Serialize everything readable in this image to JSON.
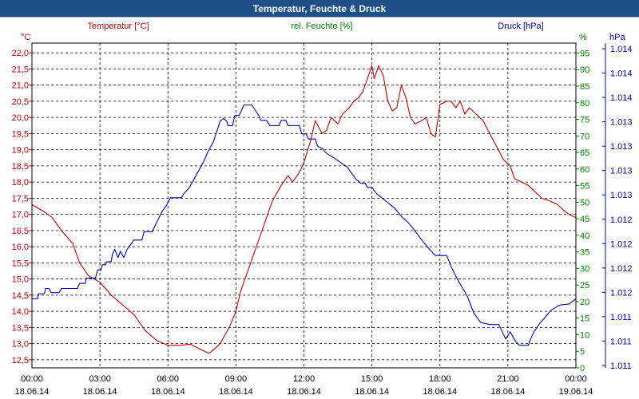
{
  "window": {
    "title": "Temperatur, Feuchte & Druck"
  },
  "colors": {
    "title_bar": "#1f4f88",
    "temperature": "#c00000",
    "humidity": "#008000",
    "pressure": "#0000b4",
    "grid": "#000000",
    "x_labels": "#000000"
  },
  "chart_data": {
    "type": "line",
    "title": "Temperatur, Feuchte & Druck",
    "x_tick_labels": [
      {
        "time": "00:00",
        "date": "18.06.14"
      },
      {
        "time": "03:00",
        "date": "18.06.14"
      },
      {
        "time": "06:00",
        "date": "18.06.14"
      },
      {
        "time": "09:00",
        "date": "18.06.14"
      },
      {
        "time": "12:00",
        "date": "18.06.14"
      },
      {
        "time": "15:00",
        "date": "18.06.14"
      },
      {
        "time": "18:00",
        "date": "18.06.14"
      },
      {
        "time": "21:00",
        "date": "18.06.14"
      },
      {
        "time": "00:00",
        "date": "19.06.14"
      }
    ],
    "x_range_hours": [
      0,
      24
    ],
    "grid": true,
    "axes": {
      "temperature": {
        "unit": "°C",
        "label": "Temperatur [°C]",
        "range": [
          12.25,
          22.3
        ],
        "ticks": [
          "12,5",
          "13,0",
          "13,5",
          "14,0",
          "14,5",
          "15,0",
          "15,5",
          "16,0",
          "16,5",
          "17,0",
          "17,5",
          "18,0",
          "18,5",
          "19,0",
          "19,5",
          "20,0",
          "20,5",
          "21,0",
          "21,5",
          "22,0"
        ]
      },
      "humidity": {
        "unit": "%",
        "label": "rel. Feuchte [%]",
        "range": [
          0,
          98
        ],
        "ticks": [
          "0",
          "5",
          "10",
          "15",
          "20",
          "25",
          "30",
          "35",
          "40",
          "45",
          "50",
          "55",
          "60",
          "65",
          "70",
          "75",
          "80",
          "85",
          "90",
          "95"
        ]
      },
      "pressure": {
        "unit": "hPa",
        "label": "Druck [hPa]",
        "range": [
          1010.95,
          1014.1
        ],
        "ticks": [
          "1.011",
          "1.011",
          "1.011",
          "1.012",
          "1.012",
          "1.012",
          "1.012",
          "1.013",
          "1.013",
          "1.013",
          "1.013",
          "1.014",
          "1.014",
          "1.014"
        ]
      }
    },
    "series": [
      {
        "name": "Temperatur",
        "axis": "temperature",
        "points": [
          [
            0.0,
            17.3
          ],
          [
            0.5,
            17.1
          ],
          [
            0.9,
            16.9
          ],
          [
            1.3,
            16.5
          ],
          [
            1.8,
            16.1
          ],
          [
            2.1,
            15.5
          ],
          [
            2.5,
            15.1
          ],
          [
            3.0,
            14.9
          ],
          [
            3.5,
            14.5
          ],
          [
            4.0,
            14.2
          ],
          [
            4.5,
            13.9
          ],
          [
            5.0,
            13.4
          ],
          [
            5.5,
            13.1
          ],
          [
            6.0,
            12.95
          ],
          [
            6.5,
            12.95
          ],
          [
            7.0,
            12.98
          ],
          [
            7.5,
            12.8
          ],
          [
            7.8,
            12.7
          ],
          [
            8.0,
            12.8
          ],
          [
            8.3,
            13.0
          ],
          [
            8.7,
            13.5
          ],
          [
            9.0,
            14.0
          ],
          [
            9.2,
            14.6
          ],
          [
            9.5,
            15.2
          ],
          [
            9.8,
            15.8
          ],
          [
            10.0,
            16.2
          ],
          [
            10.3,
            16.8
          ],
          [
            10.6,
            17.4
          ],
          [
            11.0,
            17.9
          ],
          [
            11.3,
            18.2
          ],
          [
            11.5,
            18.0
          ],
          [
            11.8,
            18.3
          ],
          [
            12.0,
            18.6
          ],
          [
            12.3,
            19.3
          ],
          [
            12.5,
            19.9
          ],
          [
            12.8,
            19.5
          ],
          [
            13.0,
            19.6
          ],
          [
            13.2,
            20.0
          ],
          [
            13.5,
            19.8
          ],
          [
            13.7,
            20.1
          ],
          [
            14.0,
            20.3
          ],
          [
            14.2,
            20.5
          ],
          [
            14.4,
            20.6
          ],
          [
            14.6,
            20.8
          ],
          [
            14.8,
            21.2
          ],
          [
            15.0,
            21.6
          ],
          [
            15.1,
            21.2
          ],
          [
            15.3,
            21.6
          ],
          [
            15.5,
            21.3
          ],
          [
            15.7,
            20.5
          ],
          [
            15.9,
            20.2
          ],
          [
            16.1,
            20.3
          ],
          [
            16.3,
            21.0
          ],
          [
            16.5,
            20.6
          ],
          [
            16.7,
            20.0
          ],
          [
            16.9,
            19.8
          ],
          [
            17.2,
            19.9
          ],
          [
            17.4,
            20.0
          ],
          [
            17.6,
            19.5
          ],
          [
            17.8,
            19.4
          ],
          [
            18.0,
            20.4
          ],
          [
            18.3,
            20.5
          ],
          [
            18.5,
            20.5
          ],
          [
            18.7,
            20.3
          ],
          [
            18.9,
            20.5
          ],
          [
            19.1,
            20.1
          ],
          [
            19.3,
            20.3
          ],
          [
            19.6,
            20.1
          ],
          [
            19.9,
            19.9
          ],
          [
            20.2,
            19.5
          ],
          [
            20.5,
            19.1
          ],
          [
            20.8,
            18.7
          ],
          [
            21.1,
            18.5
          ],
          [
            21.3,
            18.1
          ],
          [
            21.6,
            18.0
          ],
          [
            21.9,
            17.9
          ],
          [
            22.2,
            17.7
          ],
          [
            22.5,
            17.5
          ],
          [
            22.9,
            17.4
          ],
          [
            23.2,
            17.3
          ],
          [
            23.5,
            17.1
          ],
          [
            23.7,
            17.0
          ],
          [
            24.0,
            16.9
          ]
        ]
      },
      {
        "name": "rel. Feuchte",
        "axis": "humidity",
        "points": []
      },
      {
        "name": "Druck",
        "axis": "pressure",
        "points": [
          [
            0.0,
            1011.62
          ],
          [
            0.25,
            1011.62
          ],
          [
            0.3,
            1011.67
          ],
          [
            0.55,
            1011.67
          ],
          [
            0.6,
            1011.72
          ],
          [
            0.75,
            1011.72
          ],
          [
            0.85,
            1011.68
          ],
          [
            1.2,
            1011.68
          ],
          [
            1.3,
            1011.72
          ],
          [
            2.0,
            1011.72
          ],
          [
            2.1,
            1011.77
          ],
          [
            2.35,
            1011.77
          ],
          [
            2.4,
            1011.82
          ],
          [
            2.8,
            1011.82
          ],
          [
            2.9,
            1011.9
          ],
          [
            3.05,
            1011.9
          ],
          [
            3.1,
            1011.95
          ],
          [
            3.25,
            1011.95
          ],
          [
            3.3,
            1011.98
          ],
          [
            3.5,
            1011.98
          ],
          [
            3.55,
            1012.05
          ],
          [
            3.65,
            1012.1
          ],
          [
            3.8,
            1012.02
          ],
          [
            3.9,
            1012.08
          ],
          [
            4.05,
            1012.02
          ],
          [
            4.2,
            1012.1
          ],
          [
            4.3,
            1012.13
          ],
          [
            4.5,
            1012.19
          ],
          [
            4.85,
            1012.19
          ],
          [
            4.95,
            1012.27
          ],
          [
            5.3,
            1012.27
          ],
          [
            5.5,
            1012.36
          ],
          [
            5.75,
            1012.47
          ],
          [
            5.95,
            1012.53
          ],
          [
            6.1,
            1012.6
          ],
          [
            6.6,
            1012.6
          ],
          [
            6.7,
            1012.64
          ],
          [
            6.95,
            1012.7
          ],
          [
            7.3,
            1012.84
          ],
          [
            7.6,
            1012.96
          ],
          [
            7.75,
            1013.04
          ],
          [
            7.85,
            1013.08
          ],
          [
            8.0,
            1013.14
          ],
          [
            8.15,
            1013.24
          ],
          [
            8.3,
            1013.34
          ],
          [
            8.45,
            1013.37
          ],
          [
            8.6,
            1013.34
          ],
          [
            8.65,
            1013.3
          ],
          [
            8.85,
            1013.3
          ],
          [
            8.95,
            1013.4
          ],
          [
            9.15,
            1013.4
          ],
          [
            9.25,
            1013.45
          ],
          [
            9.35,
            1013.5
          ],
          [
            9.5,
            1013.5
          ],
          [
            9.7,
            1013.5
          ],
          [
            9.85,
            1013.45
          ],
          [
            10.0,
            1013.4
          ],
          [
            10.1,
            1013.35
          ],
          [
            10.35,
            1013.35
          ],
          [
            10.5,
            1013.3
          ],
          [
            10.9,
            1013.3
          ],
          [
            11.0,
            1013.35
          ],
          [
            11.2,
            1013.35
          ],
          [
            11.3,
            1013.3
          ],
          [
            11.8,
            1013.3
          ],
          [
            11.9,
            1013.22
          ],
          [
            12.1,
            1013.22
          ],
          [
            12.2,
            1013.17
          ],
          [
            12.5,
            1013.17
          ],
          [
            12.6,
            1013.1
          ],
          [
            12.8,
            1013.08
          ],
          [
            13.0,
            1013.03
          ],
          [
            13.3,
            1012.99
          ],
          [
            13.5,
            1012.96
          ],
          [
            13.7,
            1012.93
          ],
          [
            13.9,
            1012.9
          ],
          [
            14.1,
            1012.84
          ],
          [
            14.3,
            1012.78
          ],
          [
            14.5,
            1012.74
          ],
          [
            14.7,
            1012.74
          ],
          [
            14.8,
            1012.7
          ],
          [
            15.0,
            1012.7
          ],
          [
            15.2,
            1012.64
          ],
          [
            15.6,
            1012.57
          ],
          [
            16.0,
            1012.5
          ],
          [
            16.3,
            1012.42
          ],
          [
            16.6,
            1012.36
          ],
          [
            16.9,
            1012.28
          ],
          [
            17.2,
            1012.19
          ],
          [
            17.5,
            1012.11
          ],
          [
            17.8,
            1012.04
          ],
          [
            18.3,
            1012.04
          ],
          [
            18.5,
            1011.93
          ],
          [
            18.7,
            1011.84
          ],
          [
            18.9,
            1011.76
          ],
          [
            19.2,
            1011.65
          ],
          [
            19.5,
            1011.48
          ],
          [
            19.8,
            1011.39
          ],
          [
            20.2,
            1011.37
          ],
          [
            20.6,
            1011.37
          ],
          [
            20.9,
            1011.23
          ],
          [
            21.1,
            1011.3
          ],
          [
            21.3,
            1011.22
          ],
          [
            21.5,
            1011.17
          ],
          [
            21.9,
            1011.17
          ],
          [
            22.0,
            1011.23
          ],
          [
            22.15,
            1011.3
          ],
          [
            22.4,
            1011.38
          ],
          [
            22.6,
            1011.43
          ],
          [
            22.9,
            1011.51
          ],
          [
            23.3,
            1011.56
          ],
          [
            23.7,
            1011.57
          ],
          [
            24.0,
            1011.62
          ]
        ]
      }
    ]
  }
}
